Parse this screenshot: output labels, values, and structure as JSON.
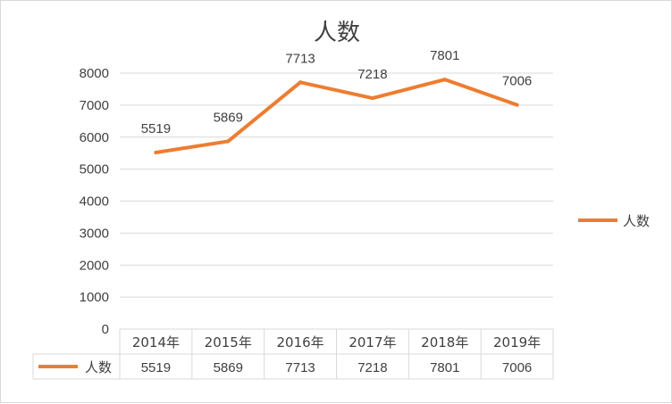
{
  "colors": {
    "series": "#ED7D31",
    "gridline": "#d9d9d9",
    "text": "#404040",
    "frame": "#d9d9d9"
  },
  "chart_data": {
    "type": "line",
    "title": "人数",
    "categories": [
      "2014年",
      "2015年",
      "2016年",
      "2017年",
      "2018年",
      "2019年"
    ],
    "series": [
      {
        "name": "人数",
        "values": [
          5519,
          5869,
          7713,
          7218,
          7801,
          7006
        ]
      }
    ],
    "ylim": [
      0,
      8000
    ],
    "yticks": [
      0,
      1000,
      2000,
      3000,
      4000,
      5000,
      6000,
      7000,
      8000
    ],
    "grid": true,
    "legend": "right",
    "data_labels": true,
    "data_table": true
  }
}
